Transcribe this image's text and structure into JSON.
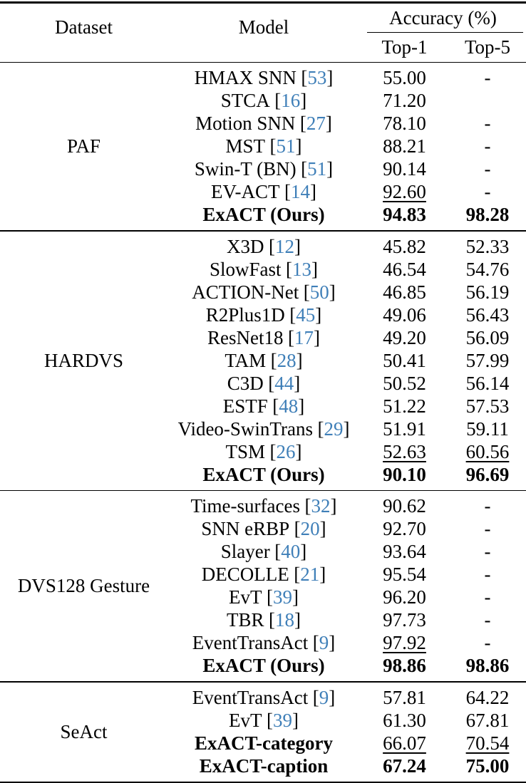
{
  "colors": {
    "citation": "#3f7fb8",
    "text": "#000000",
    "rule": "#000000"
  },
  "header": {
    "dataset_label": "Dataset",
    "model_label": "Model",
    "accuracy_label": "Accuracy (%)",
    "top1_label": "Top-1",
    "top5_label": "Top-5"
  },
  "table": {
    "bracket_open": "[",
    "bracket_close": "]",
    "sections": [
      {
        "dataset": "PAF",
        "rows": [
          {
            "model": "HMAX SNN",
            "cite": "53",
            "top1": "55.00",
            "top5": "-"
          },
          {
            "model": "STCA",
            "cite": "16",
            "top1": "71.20",
            "top5": ""
          },
          {
            "model": "Motion SNN",
            "cite": "27",
            "top1": "78.10",
            "top5": "-"
          },
          {
            "model": "MST",
            "cite": "51",
            "top1": "88.21",
            "top5": "-"
          },
          {
            "model": "Swin-T (BN)",
            "cite": "51",
            "top1": "90.14",
            "top5": "-"
          },
          {
            "model": "EV-ACT",
            "cite": "14",
            "top1": "92.60",
            "top1_underline": true,
            "top5": "-"
          },
          {
            "model": "ExACT (Ours)",
            "model_bold": true,
            "top1": "94.83",
            "top1_bold": true,
            "top5": "98.28",
            "top5_bold": true
          }
        ]
      },
      {
        "dataset": "HARDVS",
        "rows": [
          {
            "model": "X3D",
            "cite": "12",
            "top1": "45.82",
            "top5": "52.33"
          },
          {
            "model": "SlowFast",
            "cite": "13",
            "top1": "46.54",
            "top5": "54.76"
          },
          {
            "model": "ACTION-Net",
            "cite": "50",
            "top1": "46.85",
            "top5": "56.19"
          },
          {
            "model": "R2Plus1D",
            "cite": "45",
            "top1": "49.06",
            "top5": "56.43"
          },
          {
            "model": "ResNet18",
            "cite": "17",
            "top1": "49.20",
            "top5": "56.09"
          },
          {
            "model": "TAM",
            "cite": "28",
            "top1": "50.41",
            "top5": "57.99"
          },
          {
            "model": "C3D",
            "cite": "44",
            "top1": "50.52",
            "top5": "56.14"
          },
          {
            "model": "ESTF",
            "cite": "48",
            "top1": "51.22",
            "top5": "57.53"
          },
          {
            "model": "Video-SwinTrans",
            "cite": "29",
            "top1": "51.91",
            "top5": "59.11"
          },
          {
            "model": "TSM",
            "cite": "26",
            "top1": "52.63",
            "top1_underline": true,
            "top5": "60.56",
            "top5_underline": true
          },
          {
            "model": "ExACT (Ours)",
            "model_bold": true,
            "top1": "90.10",
            "top1_bold": true,
            "top5": "96.69",
            "top5_bold": true
          }
        ]
      },
      {
        "dataset": "DVS128 Gesture",
        "rows": [
          {
            "model": "Time-surfaces",
            "cite": "32",
            "top1": "90.62",
            "top5": "-"
          },
          {
            "model": "SNN eRBP",
            "cite": "20",
            "top1": "92.70",
            "top5": "-"
          },
          {
            "model": "Slayer",
            "cite": "40",
            "top1": "93.64",
            "top5": "-"
          },
          {
            "model": "DECOLLE",
            "cite": "21",
            "top1": "95.54",
            "top5": "-"
          },
          {
            "model": "EvT",
            "cite": "39",
            "top1": "96.20",
            "top5": "-"
          },
          {
            "model": "TBR",
            "cite": "18",
            "top1": "97.73",
            "top5": "-"
          },
          {
            "model": "EventTransAct",
            "cite": "9",
            "top1": "97.92",
            "top1_underline": true,
            "top5": "-"
          },
          {
            "model": "ExACT (Ours)",
            "model_bold": true,
            "top1": "98.86",
            "top1_bold": true,
            "top5": "98.86",
            "top5_bold": true
          }
        ]
      },
      {
        "dataset": "SeAct",
        "rows": [
          {
            "model": "EventTransAct",
            "cite": "9",
            "top1": "57.81",
            "top5": "64.22"
          },
          {
            "model": "EvT",
            "cite": "39",
            "top1": "61.30",
            "top5": "67.81"
          },
          {
            "model": "ExACT-category",
            "model_bold": true,
            "top1": "66.07",
            "top1_underline": true,
            "top5": "70.54",
            "top5_underline": true
          },
          {
            "model": "ExACT-caption",
            "model_bold": true,
            "top1": "67.24",
            "top1_bold": true,
            "top5": "75.00",
            "top5_bold": true
          }
        ]
      }
    ]
  }
}
